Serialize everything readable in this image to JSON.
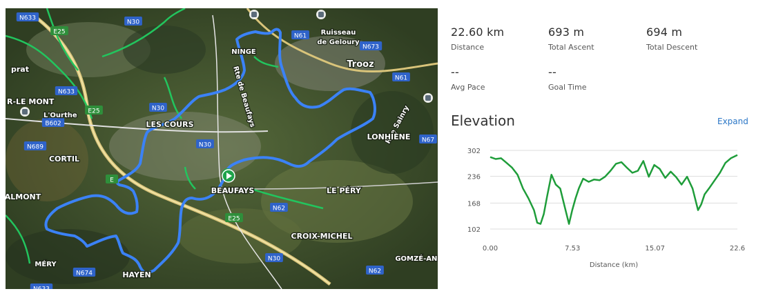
{
  "map": {
    "labels": [
      {
        "id": "n633a",
        "text": "N633"
      },
      {
        "id": "e25a",
        "text": "E25"
      },
      {
        "id": "n30a",
        "text": "N30"
      },
      {
        "id": "prat",
        "text": "prat"
      },
      {
        "id": "nin",
        "text": "NINGE"
      },
      {
        "id": "rtebe",
        "text": "Rte de Beaufays"
      },
      {
        "id": "n61a",
        "text": "N61"
      },
      {
        "id": "ruisseau1",
        "text": "Ruisseau"
      },
      {
        "id": "ruisseau2",
        "text": "de Geloury"
      },
      {
        "id": "n673",
        "text": "N673"
      },
      {
        "id": "trooz",
        "text": "Trooz"
      },
      {
        "id": "n61b",
        "text": "N61"
      },
      {
        "id": "rlemont",
        "text": "R-LE MONT"
      },
      {
        "id": "ourthe",
        "text": "L'Ourthe"
      },
      {
        "id": "n633b",
        "text": "N633"
      },
      {
        "id": "e25b",
        "text": "E25"
      },
      {
        "id": "n30b",
        "text": "N30"
      },
      {
        "id": "b602",
        "text": "B602"
      },
      {
        "id": "lescours",
        "text": "LES COURS"
      },
      {
        "id": "ruesainry",
        "text": "Rue Sainry"
      },
      {
        "id": "lonhiene",
        "text": "LONHIÈNE"
      },
      {
        "id": "n30c",
        "text": "N30"
      },
      {
        "id": "n689",
        "text": "N689"
      },
      {
        "id": "cortil",
        "text": "CORTIL"
      },
      {
        "id": "n67",
        "text": "N67"
      },
      {
        "id": "beaufays",
        "text": "BEAUFAYS"
      },
      {
        "id": "lepery",
        "text": "LE PÉRY"
      },
      {
        "id": "e25c",
        "text": "E"
      },
      {
        "id": "almont",
        "text": "ALMONT"
      },
      {
        "id": "n62a",
        "text": "N62"
      },
      {
        "id": "e25d",
        "text": "E25"
      },
      {
        "id": "croix",
        "text": "CROIX-MICHEL"
      },
      {
        "id": "gomze",
        "text": "GOMZÉ-AND"
      },
      {
        "id": "mery",
        "text": "MÉRY"
      },
      {
        "id": "n30d",
        "text": "N30"
      },
      {
        "id": "n674",
        "text": "N674"
      },
      {
        "id": "n62b",
        "text": "N62"
      },
      {
        "id": "hayen",
        "text": "HAYEN"
      },
      {
        "id": "n633c",
        "text": "N633"
      }
    ],
    "route_color": "#3b82f6",
    "start_marker_color": "#1fa34a",
    "road_color": "#22c55e"
  },
  "stats": {
    "distance": {
      "value": "22.60 km",
      "label": "Distance"
    },
    "ascent": {
      "value": "693 m",
      "label": "Total Ascent"
    },
    "descent": {
      "value": "694 m",
      "label": "Total Descent"
    },
    "pace": {
      "value": "--",
      "label": "Avg Pace"
    },
    "goal": {
      "value": "--",
      "label": "Goal Time"
    }
  },
  "elevation": {
    "title": "Elevation",
    "expand_label": "Expand"
  },
  "chart_data": {
    "type": "line",
    "xlabel": "Distance (km)",
    "ylabel": "",
    "xlim": [
      0,
      22.6
    ],
    "ylim": [
      102,
      302
    ],
    "xticks": [
      "0.00",
      "7.53",
      "15.07",
      "22.6"
    ],
    "xtick_values": [
      0,
      7.53,
      15.07,
      22.6
    ],
    "yticks": [
      "302",
      "236",
      "168",
      "102"
    ],
    "ytick_values": [
      302,
      236,
      168,
      102
    ],
    "grid": true,
    "line_color": "#1f9d3a",
    "x": [
      0,
      0.5,
      1,
      1.5,
      2,
      2.5,
      3,
      3.5,
      4,
      4.3,
      4.6,
      4.9,
      5.2,
      5.6,
      6,
      6.4,
      6.8,
      7.2,
      7.5,
      7.8,
      8.1,
      8.5,
      9,
      9.5,
      10,
      10.5,
      11,
      11.5,
      12,
      12.5,
      13,
      13.5,
      14,
      14.5,
      15,
      15.5,
      16,
      16.5,
      17,
      17.5,
      18,
      18.5,
      19,
      19.3,
      19.6,
      20,
      20.5,
      21,
      21.5,
      22,
      22.6
    ],
    "y": [
      285,
      280,
      282,
      270,
      258,
      240,
      205,
      180,
      150,
      118,
      115,
      140,
      185,
      240,
      215,
      205,
      160,
      115,
      150,
      180,
      205,
      230,
      222,
      228,
      226,
      235,
      250,
      268,
      272,
      258,
      245,
      250,
      275,
      235,
      265,
      255,
      232,
      248,
      234,
      215,
      235,
      205,
      150,
      165,
      190,
      205,
      225,
      245,
      270,
      282,
      290
    ]
  }
}
